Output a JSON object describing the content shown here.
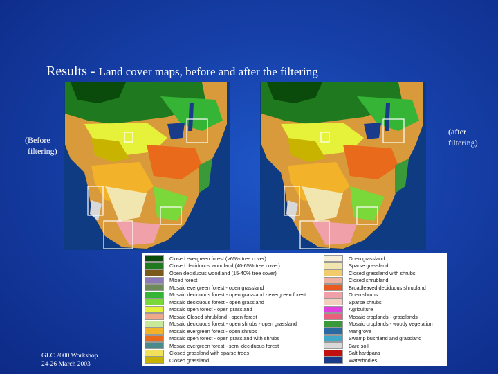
{
  "slide": {
    "title_main": "Results - ",
    "title_sub": "Land cover maps, before and after the filtering",
    "before_label_line1": "(Before",
    "before_label_line2": "filtering)",
    "after_label_line1": "(after",
    "after_label_line2": "filtering)",
    "footer_line1": "GLC 2000 Workshop",
    "footer_line2": "24-26 March 2003"
  },
  "maps": [
    {
      "name": "map-before-filtering",
      "highlight_boxes": 5
    },
    {
      "name": "map-after-filtering",
      "highlight_boxes": 5
    }
  ],
  "legend": {
    "left": [
      {
        "label": "Closed evergreen forest (>65% tree cover)",
        "color": "#0a4a0a"
      },
      {
        "label": "Closed deciduous woodland (40-65% tree cover)",
        "color": "#1f7a1f"
      },
      {
        "label": "Open deciduous woodland (15-40% tree cover)",
        "color": "#7a5a1a"
      },
      {
        "label": "Mixed forest",
        "color": "#8c7ab8"
      },
      {
        "label": "Mosaic evergreen forest - open grassland",
        "color": "#6e8a5a"
      },
      {
        "label": "Mosaic deciduous forest - open grassland - evergreen forest",
        "color": "#36b436"
      },
      {
        "label": "Mosaic deciduous forest - open grassland",
        "color": "#7ad83a"
      },
      {
        "label": "Mosaic open forest - open grassland",
        "color": "#e6f23a"
      },
      {
        "label": "Mosaic Closed shrubland - open forest",
        "color": "#f0a88a"
      },
      {
        "label": "Mosaic deciduous forest - open shrubs - open grassland",
        "color": "#c8e89a"
      },
      {
        "label": "Mosaic evergreen forest - open shrubs",
        "color": "#f2b22a"
      },
      {
        "label": "Mosaic open forest - open grassland with shrubs",
        "color": "#e86a1a"
      },
      {
        "label": "Mosaic evergreen forest - semi-deciduous forest",
        "color": "#4a8a8a"
      },
      {
        "label": "Closed grassland with sparse trees",
        "color": "#f0e05a"
      },
      {
        "label": "Closed grassland",
        "color": "#c8b400"
      }
    ],
    "right": [
      {
        "label": "Open grassland",
        "color": "#f8f0d8"
      },
      {
        "label": "Sparse grassland",
        "color": "#f2e6b0"
      },
      {
        "label": "Closed grassland with shrubs",
        "color": "#f2cc6a"
      },
      {
        "label": "Closed shrubland",
        "color": "#f0b0a0"
      },
      {
        "label": "Broadleaved deciduous shrubland",
        "color": "#e85a20"
      },
      {
        "label": "Open shrubs",
        "color": "#f0a0a8"
      },
      {
        "label": "Sparse shrubs",
        "color": "#f2d0c0"
      },
      {
        "label": "Agriculture",
        "color": "#e040e0"
      },
      {
        "label": "Mosaic croplands - grasslands",
        "color": "#e8607a"
      },
      {
        "label": "Mosaic croplands - woody vegetation",
        "color": "#3a9a3a"
      },
      {
        "label": "Mangrove",
        "color": "#2a6aa0"
      },
      {
        "label": "Swamp bushland and grassland",
        "color": "#40a8c8"
      },
      {
        "label": "Bare soil",
        "color": "#d8d8d8"
      },
      {
        "label": "Salt hardpans",
        "color": "#c01010"
      },
      {
        "label": "Waterbodies",
        "color": "#1a3a8a"
      }
    ]
  }
}
